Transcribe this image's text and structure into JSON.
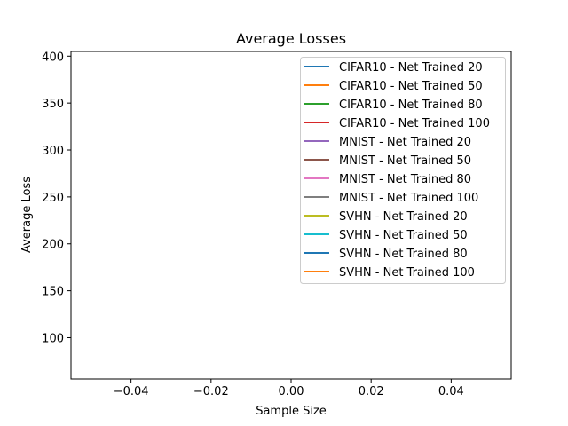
{
  "chart_data": {
    "type": "line",
    "title": "Average Losses",
    "xlabel": "Sample Size",
    "ylabel": "Average Loss",
    "xlim": [
      -0.055,
      0.055
    ],
    "ylim": [
      56,
      405
    ],
    "x_ticks": [
      -0.04,
      -0.02,
      0.0,
      0.02,
      0.04
    ],
    "x_tick_labels": [
      "−0.04",
      "−0.02",
      "0.00",
      "0.02",
      "0.04"
    ],
    "y_ticks": [
      100,
      150,
      200,
      250,
      300,
      350,
      400
    ],
    "y_tick_labels": [
      "100",
      "150",
      "200",
      "250",
      "300",
      "350",
      "400"
    ],
    "grid": false,
    "legend_position": "top-right",
    "series": [
      {
        "name": "CIFAR10 - Net Trained 20",
        "color": "#1f77b4",
        "x": [],
        "y": []
      },
      {
        "name": "CIFAR10 - Net Trained 50",
        "color": "#ff7f0e",
        "x": [],
        "y": []
      },
      {
        "name": "CIFAR10 - Net Trained 80",
        "color": "#2ca02c",
        "x": [],
        "y": []
      },
      {
        "name": "CIFAR10 - Net Trained 100",
        "color": "#d62728",
        "x": [],
        "y": []
      },
      {
        "name": "MNIST - Net Trained 20",
        "color": "#9467bd",
        "x": [],
        "y": []
      },
      {
        "name": "MNIST - Net Trained 50",
        "color": "#8c564b",
        "x": [],
        "y": []
      },
      {
        "name": "MNIST - Net Trained 80",
        "color": "#e377c2",
        "x": [],
        "y": []
      },
      {
        "name": "MNIST - Net Trained 100",
        "color": "#7f7f7f",
        "x": [],
        "y": []
      },
      {
        "name": "SVHN - Net Trained 20",
        "color": "#bcbd22",
        "x": [],
        "y": []
      },
      {
        "name": "SVHN - Net Trained 50",
        "color": "#17becf",
        "x": [],
        "y": []
      },
      {
        "name": "SVHN - Net Trained 80",
        "color": "#1f77b4",
        "x": [],
        "y": []
      },
      {
        "name": "SVHN - Net Trained 100",
        "color": "#ff7f0e",
        "x": [],
        "y": []
      }
    ]
  }
}
